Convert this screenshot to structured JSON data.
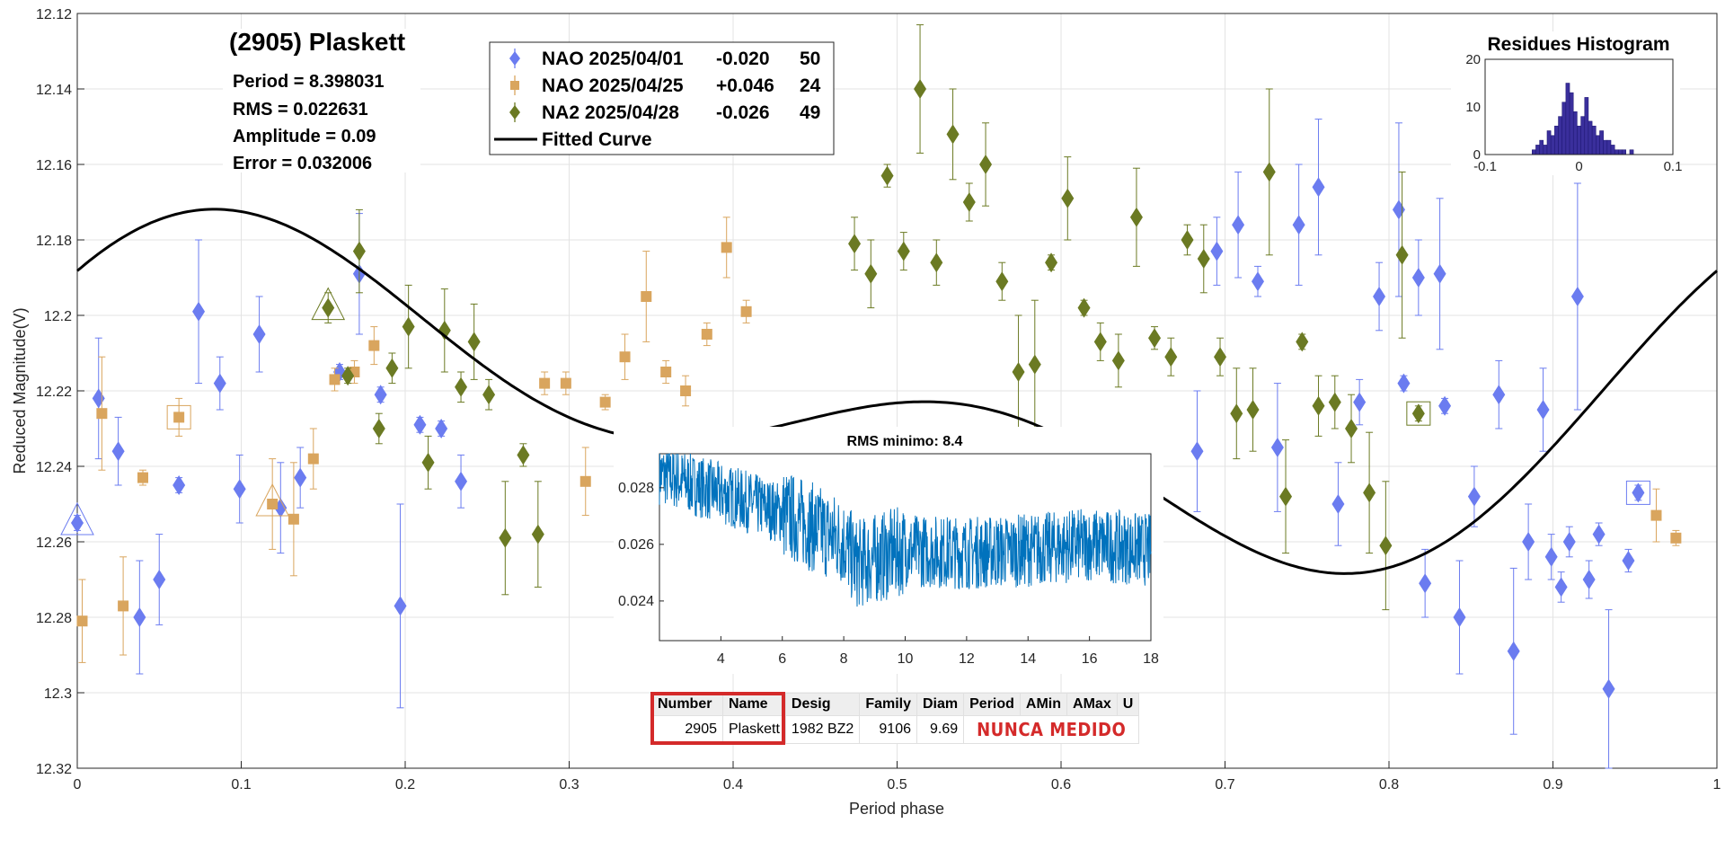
{
  "chart_data": [
    {
      "type": "scatter",
      "title": "(2905) Plaskett",
      "info_lines": [
        "Period =  8.398031",
        "RMS = 0.022631",
        "Amplitude = 0.09",
        "Error =   0.032006"
      ],
      "xlabel": "Period phase",
      "ylabel": "Reduced Magnitude(V)",
      "xlim": [
        0,
        1
      ],
      "ylim": [
        12.12,
        12.32
      ],
      "y_reversed": true,
      "grid": true,
      "legend_position": "top-center",
      "xticks": [
        "0",
        "0.1",
        "0.2",
        "0.3",
        "0.4",
        "0.5",
        "0.6",
        "0.7",
        "0.8",
        "0.9",
        "1"
      ],
      "yticks": [
        "12.12",
        "12.14",
        "12.16",
        "12.18",
        "12.2",
        "12.22",
        "12.24",
        "12.26",
        "12.28",
        "12.3",
        "12.32"
      ],
      "series": [
        {
          "name": "NAO 2025/04/01",
          "offset": "-0.020",
          "count": "50",
          "marker": "diamond",
          "color": "#6b7cf0",
          "points": [
            [
              0.0,
              12.255,
              0.002
            ],
            [
              0.013,
              12.222,
              0.016
            ],
            [
              0.025,
              12.236,
              0.009
            ],
            [
              0.038,
              12.28,
              0.015
            ],
            [
              0.05,
              12.27,
              0.012
            ],
            [
              0.062,
              12.245,
              0.002
            ],
            [
              0.074,
              12.199,
              0.019
            ],
            [
              0.087,
              12.218,
              0.007
            ],
            [
              0.099,
              12.246,
              0.009
            ],
            [
              0.111,
              12.205,
              0.01
            ],
            [
              0.124,
              12.251,
              0.012
            ],
            [
              0.136,
              12.243,
              0.008
            ],
            [
              0.16,
              12.215,
              0.002
            ],
            [
              0.172,
              12.189,
              0.016
            ],
            [
              0.185,
              12.221,
              0.002
            ],
            [
              0.197,
              12.277,
              0.027
            ],
            [
              0.209,
              12.229,
              0.002
            ],
            [
              0.222,
              12.23,
              0.002
            ],
            [
              0.234,
              12.244,
              0.007
            ],
            [
              0.683,
              12.236,
              0.016
            ],
            [
              0.695,
              12.183,
              0.009
            ],
            [
              0.708,
              12.176,
              0.014
            ],
            [
              0.72,
              12.191,
              0.004
            ],
            [
              0.732,
              12.235,
              0.017
            ],
            [
              0.745,
              12.176,
              0.016
            ],
            [
              0.757,
              12.166,
              0.018
            ],
            [
              0.769,
              12.25,
              0.011
            ],
            [
              0.782,
              12.223,
              0.006
            ],
            [
              0.794,
              12.195,
              0.009
            ],
            [
              0.806,
              12.172,
              0.023
            ],
            [
              0.809,
              12.218,
              0.002
            ],
            [
              0.818,
              12.19,
              0.01
            ],
            [
              0.822,
              12.271,
              0.009
            ],
            [
              0.831,
              12.189,
              0.02
            ],
            [
              0.834,
              12.224,
              0.002
            ],
            [
              0.843,
              12.28,
              0.015
            ],
            [
              0.852,
              12.248,
              0.008
            ],
            [
              0.867,
              12.221,
              0.009
            ],
            [
              0.876,
              12.289,
              0.022
            ],
            [
              0.885,
              12.26,
              0.01
            ],
            [
              0.894,
              12.225,
              0.011
            ],
            [
              0.899,
              12.264,
              0.006
            ],
            [
              0.905,
              12.272,
              0.004
            ],
            [
              0.91,
              12.26,
              0.004
            ],
            [
              0.915,
              12.195,
              0.03
            ],
            [
              0.922,
              12.27,
              0.005
            ],
            [
              0.928,
              12.258,
              0.003
            ],
            [
              0.934,
              12.299,
              0.021
            ],
            [
              0.946,
              12.265,
              0.003
            ],
            [
              0.952,
              12.247,
              0.002
            ]
          ]
        },
        {
          "name": "NAO 2025/04/25",
          "offset": "+0.046",
          "count": "24",
          "marker": "square",
          "color": "#d9a55e",
          "points": [
            [
              0.003,
              12.281,
              0.011
            ],
            [
              0.015,
              12.226,
              0.015
            ],
            [
              0.028,
              12.277,
              0.013
            ],
            [
              0.04,
              12.243,
              0.002
            ],
            [
              0.062,
              12.227,
              0.005
            ],
            [
              0.119,
              12.25,
              0.012
            ],
            [
              0.132,
              12.254,
              0.015
            ],
            [
              0.144,
              12.238,
              0.008
            ],
            [
              0.157,
              12.217,
              0.003
            ],
            [
              0.169,
              12.215,
              0.003
            ],
            [
              0.181,
              12.208,
              0.005
            ],
            [
              0.285,
              12.218,
              0.003
            ],
            [
              0.298,
              12.218,
              0.003
            ],
            [
              0.31,
              12.244,
              0.009
            ],
            [
              0.322,
              12.223,
              0.002
            ],
            [
              0.334,
              12.211,
              0.006
            ],
            [
              0.347,
              12.195,
              0.012
            ],
            [
              0.359,
              12.215,
              0.003
            ],
            [
              0.371,
              12.22,
              0.004
            ],
            [
              0.384,
              12.205,
              0.003
            ],
            [
              0.396,
              12.182,
              0.008
            ],
            [
              0.408,
              12.199,
              0.003
            ],
            [
              0.963,
              12.253,
              0.007
            ],
            [
              0.975,
              12.259,
              0.002
            ]
          ]
        },
        {
          "name": "NA2 2025/04/28",
          "offset": "-0.026",
          "count": "49",
          "marker": "diamond",
          "color": "#6b7a23",
          "points": [
            [
              0.153,
              12.198,
              0.004
            ],
            [
              0.165,
              12.216,
              0.002
            ],
            [
              0.172,
              12.183,
              0.011
            ],
            [
              0.184,
              12.23,
              0.004
            ],
            [
              0.192,
              12.214,
              0.004
            ],
            [
              0.202,
              12.203,
              0.011
            ],
            [
              0.214,
              12.239,
              0.007
            ],
            [
              0.224,
              12.204,
              0.011
            ],
            [
              0.234,
              12.219,
              0.004
            ],
            [
              0.242,
              12.207,
              0.01
            ],
            [
              0.251,
              12.221,
              0.004
            ],
            [
              0.261,
              12.259,
              0.015
            ],
            [
              0.272,
              12.237,
              0.003
            ],
            [
              0.281,
              12.258,
              0.014
            ],
            [
              0.474,
              12.181,
              0.007
            ],
            [
              0.484,
              12.189,
              0.009
            ],
            [
              0.494,
              12.163,
              0.003
            ],
            [
              0.504,
              12.183,
              0.005
            ],
            [
              0.514,
              12.14,
              0.017
            ],
            [
              0.524,
              12.186,
              0.006
            ],
            [
              0.534,
              12.152,
              0.012
            ],
            [
              0.544,
              12.17,
              0.005
            ],
            [
              0.554,
              12.16,
              0.011
            ],
            [
              0.564,
              12.191,
              0.005
            ],
            [
              0.574,
              12.215,
              0.015
            ],
            [
              0.584,
              12.213,
              0.017
            ],
            [
              0.594,
              12.186,
              0.002
            ],
            [
              0.604,
              12.169,
              0.011
            ],
            [
              0.614,
              12.198,
              0.002
            ],
            [
              0.624,
              12.207,
              0.005
            ],
            [
              0.635,
              12.212,
              0.007
            ],
            [
              0.646,
              12.174,
              0.013
            ],
            [
              0.657,
              12.206,
              0.003
            ],
            [
              0.667,
              12.211,
              0.005
            ],
            [
              0.677,
              12.18,
              0.004
            ],
            [
              0.687,
              12.185,
              0.009
            ],
            [
              0.697,
              12.211,
              0.005
            ],
            [
              0.707,
              12.226,
              0.012
            ],
            [
              0.717,
              12.225,
              0.011
            ],
            [
              0.727,
              12.162,
              0.022
            ],
            [
              0.737,
              12.248,
              0.015
            ],
            [
              0.747,
              12.207,
              0.002
            ],
            [
              0.757,
              12.224,
              0.008
            ],
            [
              0.767,
              12.223,
              0.007
            ],
            [
              0.777,
              12.23,
              0.009
            ],
            [
              0.788,
              12.247,
              0.016
            ],
            [
              0.798,
              12.261,
              0.017
            ],
            [
              0.808,
              12.184,
              0.022
            ],
            [
              0.818,
              12.226,
              0.002
            ]
          ]
        }
      ],
      "fitted_curve": {
        "name": "Fitted Curve",
        "color": "#000000",
        "mean": 12.2232,
        "fourier": [
          {
            "k": 1,
            "a": -0.0175,
            "b": -0.0266
          },
          {
            "k": 2,
            "a": -0.0175,
            "b": -0.0163
          }
        ]
      },
      "highlight_markers": [
        {
          "shape": "triangle",
          "series": 0,
          "point": 0
        },
        {
          "shape": "triangle",
          "series": 2,
          "point": 0
        },
        {
          "shape": "triangle",
          "series": 1,
          "point": 5
        },
        {
          "shape": "square",
          "series": 1,
          "point": 4
        },
        {
          "shape": "square",
          "series": 0,
          "point": 49
        },
        {
          "shape": "square",
          "series": 2,
          "point": 48
        }
      ]
    },
    {
      "type": "bar",
      "title": "Residues Histogram",
      "xlim": [
        -0.1,
        0.1
      ],
      "ylim": [
        0,
        20
      ],
      "xticks": [
        "-0.1",
        "0",
        "0.1"
      ],
      "yticks": [
        "0",
        "10",
        "20"
      ],
      "color": "#3a2f9c",
      "bin_start": -0.05,
      "bin_width": 0.004,
      "counts": [
        1,
        2,
        3,
        2,
        5,
        4,
        6,
        8,
        11,
        15,
        13,
        9,
        6,
        8,
        12,
        7,
        6,
        4,
        5,
        3,
        3,
        2,
        1,
        1,
        1,
        0,
        1
      ]
    },
    {
      "type": "line",
      "title": "RMS minimo: 8.4",
      "xlim": [
        2,
        18
      ],
      "ylim": [
        0.0226,
        0.0292
      ],
      "xticks": [
        "4",
        "6",
        "8",
        "10",
        "12",
        "14",
        "16",
        "18"
      ],
      "yticks": [
        "0.024",
        "0.026",
        "0.028"
      ],
      "color": "#0072bd",
      "trend": [
        [
          2,
          0.0285
        ],
        [
          4,
          0.0278
        ],
        [
          6,
          0.0271
        ],
        [
          8,
          0.0261
        ],
        [
          8.4,
          0.0253
        ],
        [
          10,
          0.0258
        ],
        [
          12,
          0.0257
        ],
        [
          14,
          0.0258
        ],
        [
          16,
          0.026
        ],
        [
          18,
          0.0258
        ]
      ]
    }
  ],
  "table": {
    "headers": [
      "Number",
      "Name",
      "Desig",
      "Family",
      "Diam",
      "Period",
      "AMin",
      "AMax",
      "U"
    ],
    "row": {
      "number": "2905",
      "name": "Plaskett",
      "desig": "1982 BZ2",
      "family": "9106",
      "diam": "9.69",
      "note": "NUNCA MEDIDO"
    },
    "highlight_color": "#d42a2a"
  }
}
